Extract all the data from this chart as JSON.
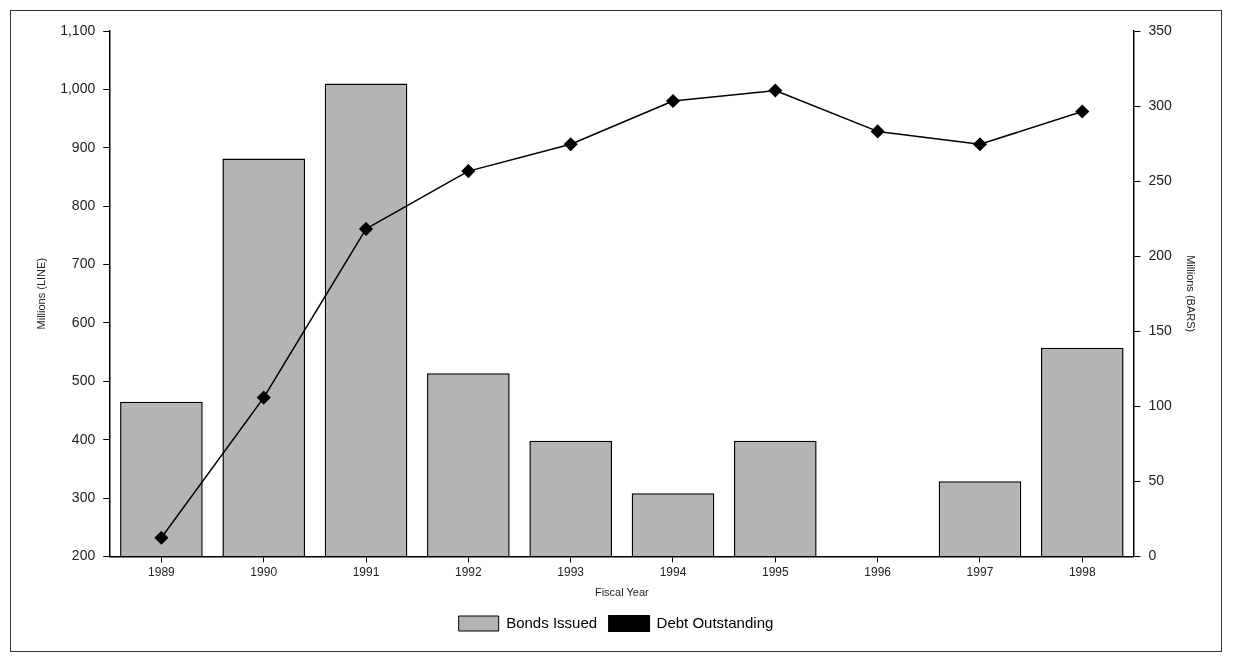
{
  "chart_data": {
    "type": "bar",
    "xlabel": "Fiscal Year",
    "ylabel": "Millions (LINE)",
    "y2label": "Millions (BARS)",
    "categories": [
      "1989",
      "1990",
      "1991",
      "1992",
      "1993",
      "1994",
      "1995",
      "1996",
      "1997",
      "1998"
    ],
    "series": [
      {
        "name": "Bonds Issued",
        "axis": "y2",
        "color": "#b4b4b4",
        "values": [
          103,
          265,
          315,
          122,
          77,
          42,
          77,
          0,
          50,
          139
        ]
      },
      {
        "name": "Debt Outstanding",
        "type": "line",
        "axis": "y",
        "color": "#000000",
        "marker": "diamond",
        "values": [
          232,
          472,
          761,
          860,
          906,
          980,
          998,
          928,
          906,
          962
        ]
      }
    ],
    "ylim": [
      200,
      1100
    ],
    "yticks": [
      200,
      300,
      400,
      500,
      600,
      700,
      800,
      900,
      {
        "value": 1000,
        "label": "1,000"
      },
      {
        "value": 1100,
        "label": "1,100"
      }
    ],
    "y2lim": [
      0,
      350
    ],
    "y2ticks": [
      0,
      50,
      100,
      150,
      200,
      250,
      300,
      350
    ],
    "grid": false,
    "legend": "bottom"
  }
}
